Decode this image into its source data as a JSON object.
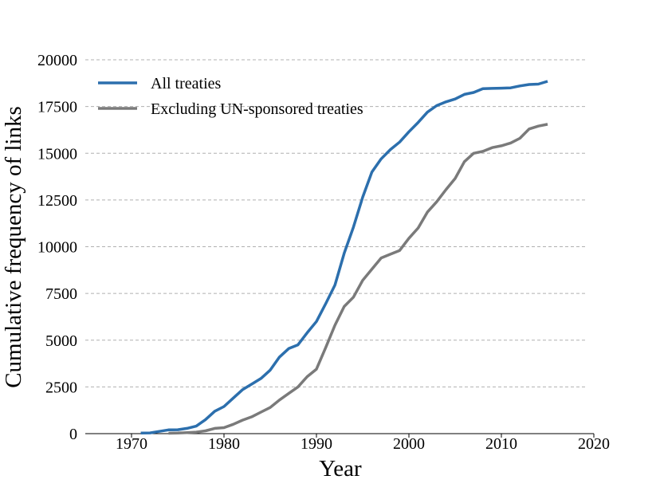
{
  "chart_data": {
    "type": "line",
    "title": "",
    "xlabel": "Year",
    "ylabel": "Cumulative frequency of links",
    "xlim": [
      1965,
      2020
    ],
    "ylim": [
      0,
      20000
    ],
    "xticks": [
      1970,
      1980,
      1990,
      2000,
      2010,
      2020
    ],
    "yticks": [
      0,
      2500,
      5000,
      7500,
      10000,
      12500,
      15000,
      17500,
      20000
    ],
    "grid": "horizontal dashed",
    "legend_position": "top-left",
    "series": [
      {
        "name": "All treaties",
        "color": "#2c6fad",
        "x": [
          1971,
          1972,
          1973,
          1974,
          1975,
          1976,
          1977,
          1978,
          1979,
          1980,
          1981,
          1982,
          1983,
          1984,
          1985,
          1986,
          1987,
          1988,
          1989,
          1990,
          1991,
          1992,
          1993,
          1994,
          1995,
          1996,
          1997,
          1998,
          1999,
          2000,
          2001,
          2002,
          2003,
          2004,
          2005,
          2006,
          2007,
          2008,
          2009,
          2010,
          2011,
          2012,
          2013,
          2014,
          2015
        ],
        "y": [
          30,
          40,
          120,
          200,
          210,
          280,
          400,
          750,
          1200,
          1450,
          1900,
          2350,
          2650,
          2950,
          3400,
          4100,
          4550,
          4750,
          5400,
          6000,
          6950,
          7950,
          9650,
          11050,
          12650,
          14000,
          14700,
          15200,
          15600,
          16150,
          16650,
          17200,
          17550,
          17750,
          17900,
          18150,
          18250,
          18450,
          18470,
          18480,
          18500,
          18600,
          18680,
          18700,
          18850
        ]
      },
      {
        "name": "Excluding UN-sponsored treaties",
        "color": "#7a7a7a",
        "x": [
          1974,
          1975,
          1976,
          1977,
          1978,
          1979,
          1980,
          1981,
          1982,
          1983,
          1984,
          1985,
          1986,
          1987,
          1988,
          1989,
          1990,
          1991,
          1992,
          1993,
          1994,
          1995,
          1996,
          1997,
          1998,
          1999,
          2000,
          2001,
          2002,
          2003,
          2004,
          2005,
          2006,
          2007,
          2008,
          2009,
          2010,
          2011,
          2012,
          2013,
          2014,
          2015
        ],
        "y": [
          20,
          30,
          50,
          80,
          150,
          280,
          320,
          500,
          720,
          900,
          1150,
          1400,
          1800,
          2150,
          2500,
          3050,
          3450,
          4600,
          5800,
          6800,
          7300,
          8200,
          8800,
          9400,
          9600,
          9800,
          10450,
          11000,
          11850,
          12400,
          13050,
          13650,
          14550,
          15000,
          15100,
          15300,
          15400,
          15550,
          15800,
          16300,
          16450,
          16550
        ]
      }
    ]
  }
}
